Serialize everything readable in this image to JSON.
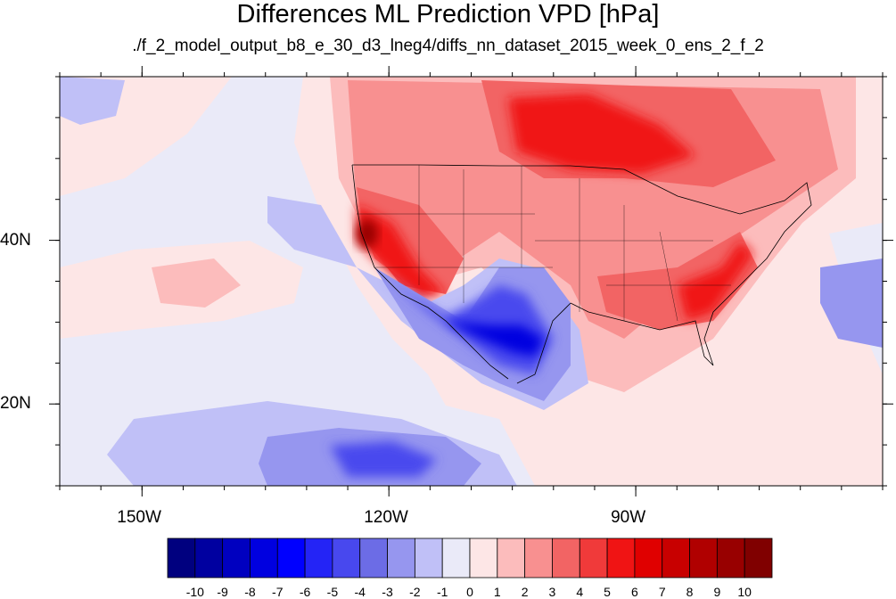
{
  "title": "Differences ML Prediction VPD [hPa]",
  "subtitle": "./f_2_model_output_b8_e_30_d3_lneg4/diffs_nn_dataset_2015_week_0_ens_2_f_2",
  "map": {
    "lon_range": [
      -160,
      -60
    ],
    "lat_range": [
      10,
      60
    ],
    "lon_ticks": [
      {
        "lon": -150,
        "label": "150W"
      },
      {
        "lon": -120,
        "label": "120W"
      },
      {
        "lon": -90,
        "label": "90W"
      }
    ],
    "lat_ticks": [
      {
        "lat": 40,
        "label": "40N"
      },
      {
        "lat": 20,
        "label": "20N"
      }
    ],
    "colorbar": {
      "levels": [
        "-10",
        "-9",
        "-8",
        "-7",
        "-6",
        "-5",
        "-4",
        "-3",
        "-2",
        "-1",
        "0",
        "1",
        "2",
        "3",
        "4",
        "5",
        "6",
        "7",
        "8",
        "9",
        "10"
      ],
      "colors": [
        "#00007f",
        "#0000a0",
        "#0000c0",
        "#0000e0",
        "#0000ff",
        "#2424f6",
        "#4848ee",
        "#6c6ce6",
        "#9696ef",
        "#c0c0f7",
        "#eaeaf8",
        "#fde6e6",
        "#fcbcbc",
        "#f89090",
        "#f26464",
        "#f03a3a",
        "#f01414",
        "#e00000",
        "#c80000",
        "#b00000",
        "#980000",
        "#800000"
      ]
    }
  }
}
